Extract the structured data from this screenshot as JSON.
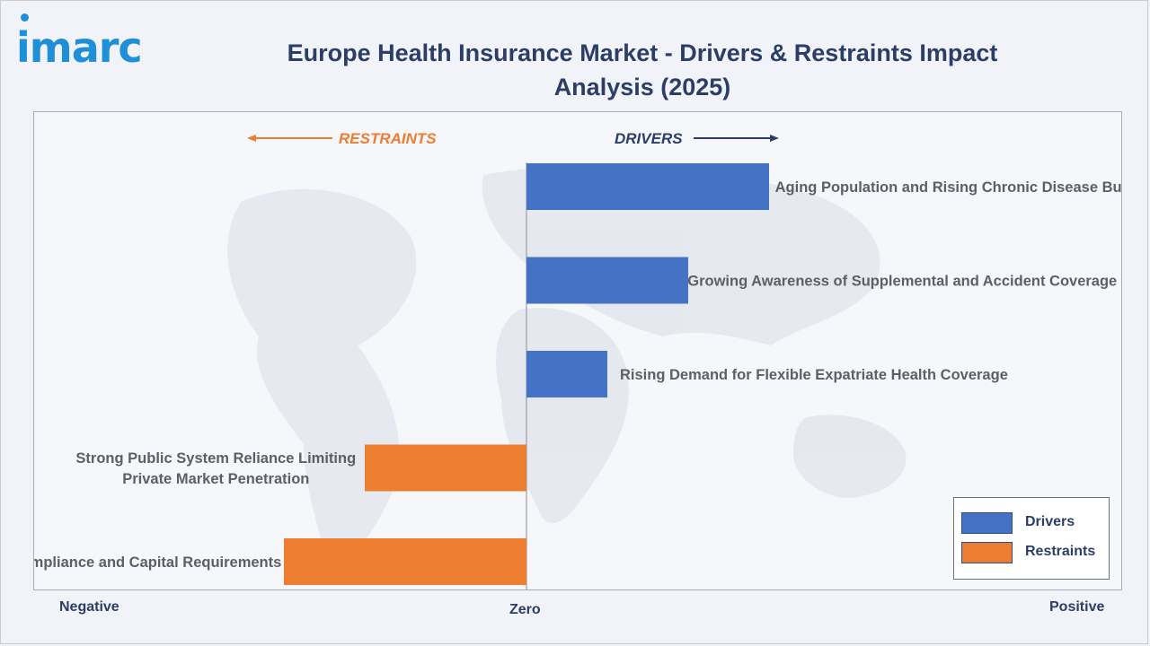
{
  "brand": "imarc",
  "title": "Europe Health Insurance Market - Drivers & Restraints Impact Analysis (2025)",
  "direction_labels": {
    "restraints": "RESTRAINTS",
    "drivers": "DRIVERS"
  },
  "axis": {
    "negative": "Negative",
    "zero": "Zero",
    "positive": "Positive"
  },
  "colors": {
    "drivers": "#4472c4",
    "restraints": "#ed7d31",
    "title": "#2c3e66",
    "brand": "#1f8fd8"
  },
  "chart_data": {
    "type": "bar",
    "orientation": "horizontal",
    "categories": [
      "Aging Population and Rising Chronic Disease Burden",
      "Growing Awareness of Supplemental and Accident Coverage",
      "Rising Demand for Flexible Expatriate Health Coverage",
      "Strong Public System Reliance Limiting Private Market Penetration",
      "Regulatory Compliance and Capital Requirements"
    ],
    "values": [
      3,
      2,
      1,
      -2,
      -3
    ],
    "series_type": [
      "Drivers",
      "Drivers",
      "Drivers",
      "Restraints",
      "Restraints"
    ],
    "xlim": [
      -6,
      6
    ],
    "legend": [
      {
        "name": "Drivers",
        "color": "#4472c4"
      },
      {
        "name": "Restraints",
        "color": "#ed7d31"
      }
    ],
    "legend_position": "bottom-right",
    "grid": false
  }
}
